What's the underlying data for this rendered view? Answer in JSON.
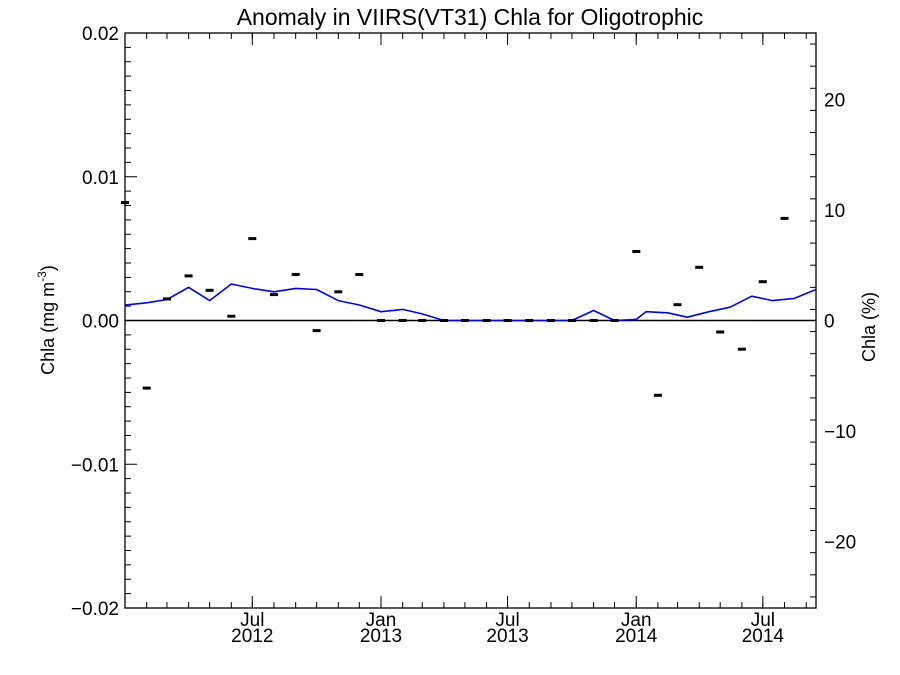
{
  "chart_data": {
    "type": "line",
    "title": "Anomaly in VIIRS(VT31) Chla for Oligotrophic",
    "ylabel_left": "Chla (mg m",
    "ylabel_left_sup": "-3",
    "ylabel_left_close": ")",
    "ylabel_right": "Chla (%)",
    "xlim": [
      "2012-01-01",
      "2014-09-15"
    ],
    "ylim_left": [
      -0.02,
      0.02
    ],
    "ylim_right": [
      -26,
      26
    ],
    "zero_line": true,
    "grid": false,
    "x_ticks": [
      {
        "date": "2012-07-01",
        "month": "Jul",
        "year": "2012"
      },
      {
        "date": "2013-01-01",
        "month": "Jan",
        "year": "2013"
      },
      {
        "date": "2013-07-01",
        "month": "Jul",
        "year": "2013"
      },
      {
        "date": "2014-01-01",
        "month": "Jan",
        "year": "2014"
      },
      {
        "date": "2014-07-01",
        "month": "Jul",
        "year": "2014"
      }
    ],
    "y_ticks_left": [
      {
        "value": 0.02,
        "label": "0.02"
      },
      {
        "value": 0.01,
        "label": "0.01"
      },
      {
        "value": 0.0,
        "label": "0.00"
      },
      {
        "value": -0.01,
        "label": "−0.01"
      },
      {
        "value": -0.02,
        "label": "−0.02"
      }
    ],
    "y_ticks_right": [
      {
        "value": 20,
        "label": "20"
      },
      {
        "value": 10,
        "label": "10"
      },
      {
        "value": 0,
        "label": "0"
      },
      {
        "value": -10,
        "label": "−10"
      },
      {
        "value": -20,
        "label": "−20"
      }
    ],
    "series": [
      {
        "type": "line",
        "axis": "right",
        "color": "#0000ff",
        "points": [
          {
            "x": "2012-01-01",
            "y": 1.4
          },
          {
            "x": "2012-02-01",
            "y": 1.6
          },
          {
            "x": "2012-03-01",
            "y": 1.9
          },
          {
            "x": "2012-04-01",
            "y": 3.0
          },
          {
            "x": "2012-05-01",
            "y": 1.8
          },
          {
            "x": "2012-06-01",
            "y": 3.3
          },
          {
            "x": "2012-07-01",
            "y": 2.9
          },
          {
            "x": "2012-08-01",
            "y": 2.6
          },
          {
            "x": "2012-09-01",
            "y": 2.9
          },
          {
            "x": "2012-10-01",
            "y": 2.8
          },
          {
            "x": "2012-11-01",
            "y": 1.8
          },
          {
            "x": "2012-12-01",
            "y": 1.4
          },
          {
            "x": "2013-01-01",
            "y": 0.8
          },
          {
            "x": "2013-02-01",
            "y": 1.0
          },
          {
            "x": "2013-03-01",
            "y": 0.6
          },
          {
            "x": "2013-04-01",
            "y": 0.0
          },
          {
            "x": "2013-05-01",
            "y": 0.0
          },
          {
            "x": "2013-06-01",
            "y": 0.0
          },
          {
            "x": "2013-07-01",
            "y": 0.0
          },
          {
            "x": "2013-08-01",
            "y": 0.0
          },
          {
            "x": "2013-09-01",
            "y": 0.0
          },
          {
            "x": "2013-10-01",
            "y": 0.0
          },
          {
            "x": "2013-11-01",
            "y": 0.9
          },
          {
            "x": "2013-12-01",
            "y": 0.0
          },
          {
            "x": "2014-01-01",
            "y": 0.1
          },
          {
            "x": "2014-01-15",
            "y": 0.8
          },
          {
            "x": "2014-02-15",
            "y": 0.7
          },
          {
            "x": "2014-03-15",
            "y": 0.3
          },
          {
            "x": "2014-04-15",
            "y": 0.8
          },
          {
            "x": "2014-05-15",
            "y": 1.2
          },
          {
            "x": "2014-06-15",
            "y": 2.2
          },
          {
            "x": "2014-07-15",
            "y": 1.8
          },
          {
            "x": "2014-08-15",
            "y": 2.0
          },
          {
            "x": "2014-09-15",
            "y": 2.8
          }
        ]
      },
      {
        "type": "markers",
        "axis": "left",
        "color": "#000000",
        "points": [
          {
            "x": "2012-01-01",
            "y": 0.0082
          },
          {
            "x": "2012-02-01",
            "y": -0.0047
          },
          {
            "x": "2012-03-01",
            "y": 0.0015
          },
          {
            "x": "2012-04-01",
            "y": 0.0031
          },
          {
            "x": "2012-05-01",
            "y": 0.0021
          },
          {
            "x": "2012-06-01",
            "y": 0.0003
          },
          {
            "x": "2012-07-01",
            "y": 0.0057
          },
          {
            "x": "2012-08-01",
            "y": 0.0018
          },
          {
            "x": "2012-09-01",
            "y": 0.0032
          },
          {
            "x": "2012-10-01",
            "y": -0.0007
          },
          {
            "x": "2012-11-01",
            "y": 0.002
          },
          {
            "x": "2012-12-01",
            "y": 0.0032
          },
          {
            "x": "2013-01-01",
            "y": 0.0
          },
          {
            "x": "2013-02-01",
            "y": 0.0
          },
          {
            "x": "2013-03-01",
            "y": 0.0
          },
          {
            "x": "2013-04-01",
            "y": 0.0
          },
          {
            "x": "2013-05-01",
            "y": 0.0
          },
          {
            "x": "2013-06-01",
            "y": 0.0
          },
          {
            "x": "2013-07-01",
            "y": 0.0
          },
          {
            "x": "2013-08-01",
            "y": 0.0
          },
          {
            "x": "2013-09-01",
            "y": 0.0
          },
          {
            "x": "2013-10-01",
            "y": 0.0
          },
          {
            "x": "2013-11-01",
            "y": 0.0
          },
          {
            "x": "2013-12-01",
            "y": 0.0
          },
          {
            "x": "2014-01-01",
            "y": 0.0048
          },
          {
            "x": "2014-02-01",
            "y": -0.0052
          },
          {
            "x": "2014-03-01",
            "y": 0.0011
          },
          {
            "x": "2014-04-01",
            "y": 0.0037
          },
          {
            "x": "2014-05-01",
            "y": -0.0008
          },
          {
            "x": "2014-06-01",
            "y": -0.002
          },
          {
            "x": "2014-07-01",
            "y": 0.0027
          },
          {
            "x": "2014-08-01",
            "y": 0.0071
          }
        ]
      }
    ]
  }
}
